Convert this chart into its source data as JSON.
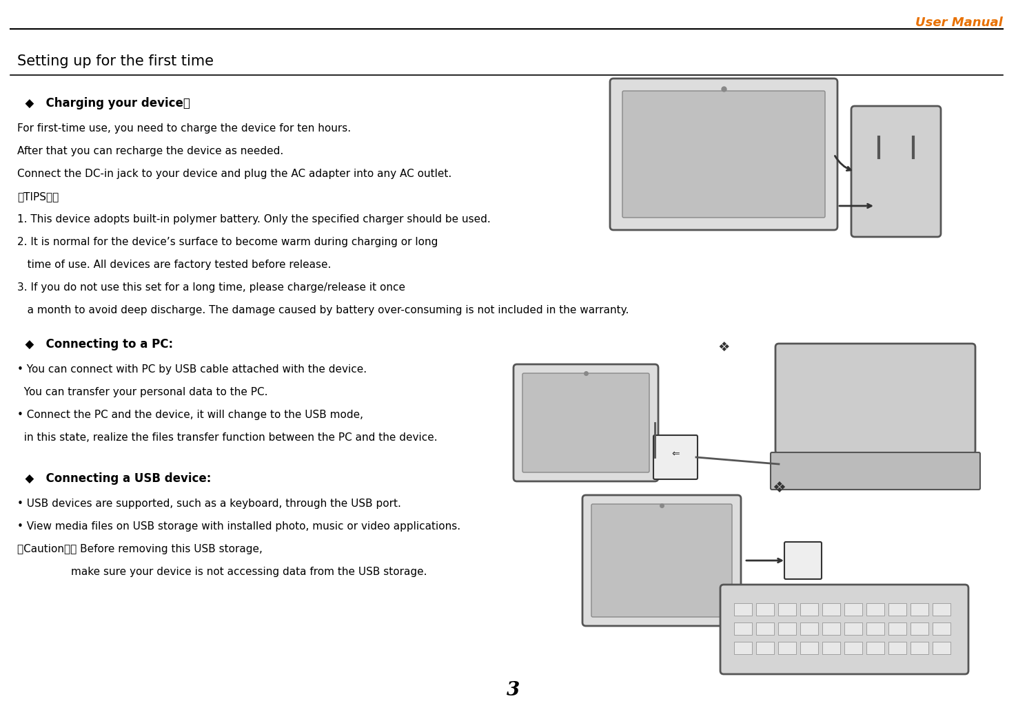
{
  "page_width": 14.9,
  "page_height": 10.34,
  "bg_color": "#ffffff",
  "header_text": "User Manual",
  "header_color": "#E87000",
  "header_font_size": 13,
  "section_title": "Setting up for the first time",
  "section_title_font_size": 15,
  "section_title_underline": true,
  "diamond_color": "#000000",
  "subsection1_title": "  ◆   Charging your device：",
  "subsection1_body": [
    "For first-time use, you need to charge the device for ten hours.",
    "After that you can recharge the device as needed.",
    "Connect the DC-in jack to your device and plug the AC adapter into any AC outlet.",
    "【TIPS】：",
    "1. This device adopts built-in polymer battery. Only the specified charger should be used.",
    "2. It is normal for the device’s surface to become warm during charging or long",
    "   time of use. All devices are factory tested before release.",
    "3. If you do not use this set for a long time, please charge/release it once",
    "   a month to avoid deep discharge. The damage caused by battery over-consuming is not included in the warranty."
  ],
  "subsection2_title": "  ◆   Connecting to a PC:",
  "subsection2_body": [
    "• You can connect with PC by USB cable attached with the device.",
    "  You can transfer your personal data to the PC.",
    "• Connect the PC and the device, it will change to the USB mode,",
    "  in this state, realize the files transfer function between the PC and the device."
  ],
  "subsection3_title": "  ◆   Connecting a USB device:",
  "subsection3_body": [
    "• USB devices are supported, such as a keyboard, through the USB port.",
    "• View media files on USB storage with installed photo, music or video applications.",
    "【Caution】： Before removing this USB storage,",
    "                make sure your device is not accessing data from the USB storage."
  ],
  "page_number": "3",
  "text_color": "#000000",
  "bold_titles": true,
  "body_font_size": 11,
  "subsection_title_font_size": 12
}
